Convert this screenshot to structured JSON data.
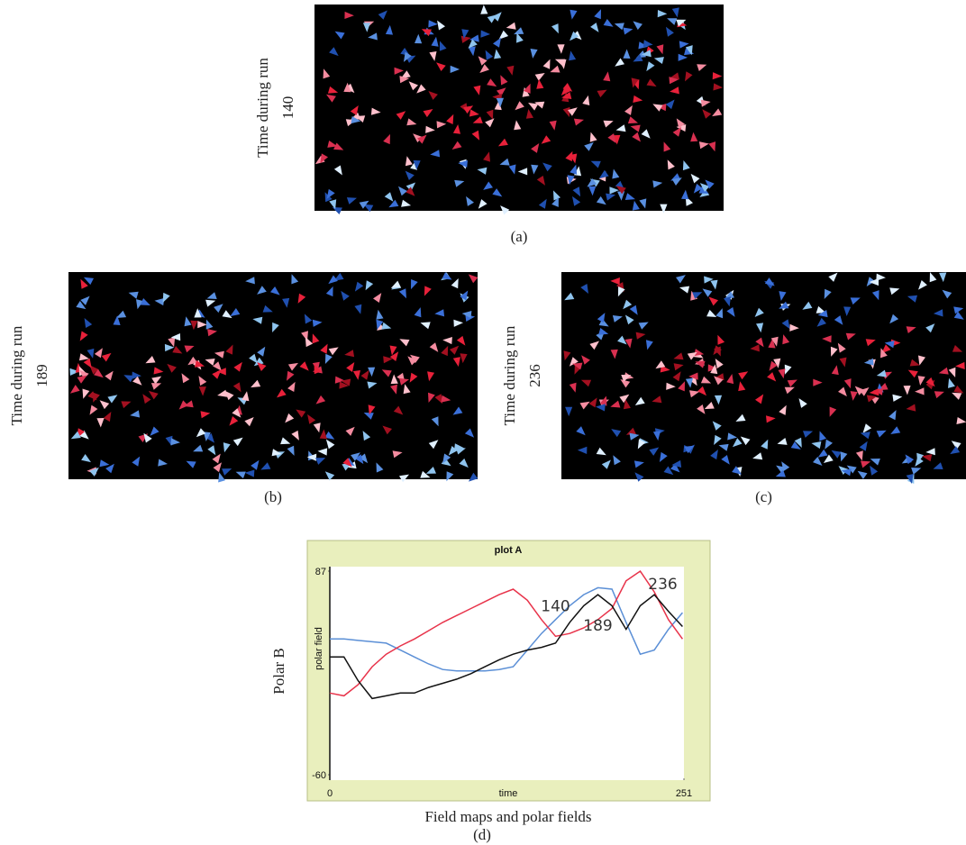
{
  "panels": [
    {
      "side_label": "Time during run",
      "time": "140",
      "caption": "(a)"
    },
    {
      "side_label": "Time during run",
      "time": "189",
      "caption": "(b)"
    },
    {
      "side_label": "Time during run",
      "time": "236",
      "caption": "(c)"
    }
  ],
  "outer_ylabel": "Polar B",
  "figure_caption": "Field maps and polar fields",
  "plot_caption": "(d)",
  "chart_data": {
    "type": "line",
    "title": "plot A",
    "ylabel": "polar field",
    "xlabel": "time",
    "x": [
      0,
      10,
      20,
      30,
      40,
      50,
      60,
      70,
      80,
      90,
      100,
      110,
      120,
      130,
      140,
      150,
      160,
      170,
      180,
      190,
      200,
      210,
      220,
      230,
      240,
      250
    ],
    "series": [
      {
        "color": "#5b8fd6",
        "values": [
          38,
          38,
          37,
          36,
          35,
          30,
          25,
          20,
          16,
          15,
          15,
          15,
          16,
          18,
          30,
          42,
          52,
          62,
          70,
          75,
          74,
          50,
          27,
          30,
          45,
          57
        ]
      },
      {
        "color": "#e8334a",
        "values": [
          -1,
          -3,
          5,
          18,
          27,
          33,
          38,
          44,
          50,
          55,
          60,
          65,
          70,
          74,
          66,
          52,
          40,
          42,
          46,
          52,
          60,
          80,
          87,
          72,
          52,
          38
        ]
      },
      {
        "color": "#111111",
        "values": [
          25,
          25,
          8,
          -5,
          -3,
          -1,
          -1,
          3,
          6,
          9,
          13,
          18,
          23,
          27,
          30,
          32,
          35,
          50,
          62,
          70,
          62,
          45,
          62,
          70,
          58,
          47
        ]
      }
    ],
    "annotations": [
      {
        "text": "140",
        "x": 160,
        "y": 58
      },
      {
        "text": "189",
        "x": 190,
        "y": 44
      },
      {
        "text": "236",
        "x": 236,
        "y": 74
      }
    ],
    "xlim": [
      0,
      251
    ],
    "ylim": [
      -60,
      87
    ],
    "xticks": [
      0,
      251
    ],
    "yticks": [
      -60,
      87
    ],
    "grid": false
  }
}
